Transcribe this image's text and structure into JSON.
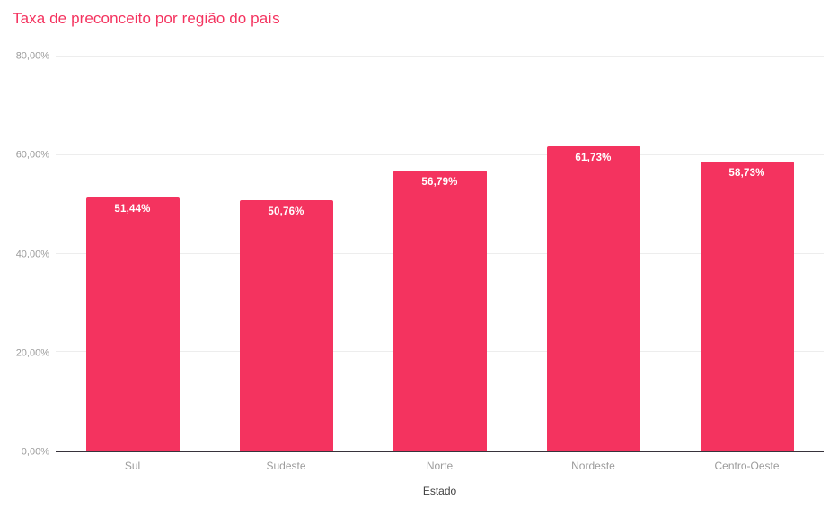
{
  "chart_data": {
    "type": "bar",
    "title": "Taxa de preconceito por região do país",
    "categories": [
      "Sul",
      "Sudeste",
      "Norte",
      "Nordeste",
      "Centro-Oeste"
    ],
    "values": [
      51.44,
      50.76,
      56.79,
      61.73,
      58.73
    ],
    "value_labels": [
      "51,44%",
      "50,76%",
      "56,79%",
      "61,73%",
      "58,73%"
    ],
    "xlabel": "Estado",
    "ylabel": "",
    "ylim": [
      0,
      80
    ],
    "y_ticks": [
      0,
      20,
      40,
      60,
      80
    ],
    "y_tick_labels": [
      "0,00%",
      "20,00%",
      "40,00%",
      "60,00%",
      "80,00%"
    ],
    "grid": true,
    "legend_position": "none",
    "colors": {
      "bar": "#f4335f",
      "title": "#f4335f",
      "axis_line": "#37333b",
      "gridline": "#ededed",
      "tick_label": "#9b9b9b",
      "value_label": "#ffffff",
      "x_axis_title": "#424242"
    }
  }
}
